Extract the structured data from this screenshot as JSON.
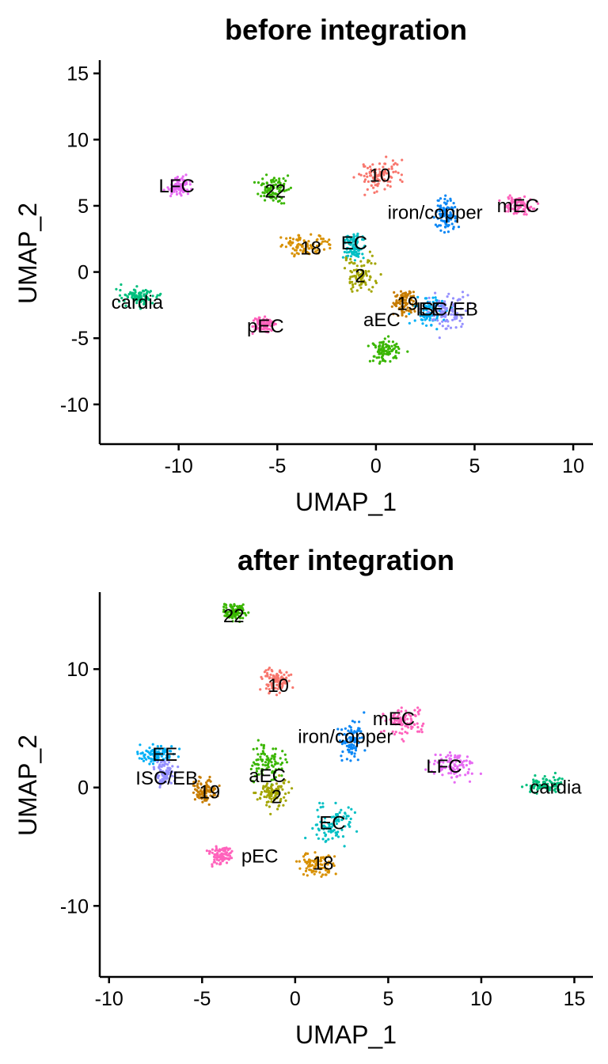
{
  "palette": {
    "red": "#F8766D",
    "olive": "#A3A500",
    "orange": "#D89000",
    "green": "#39B600",
    "teal": "#00BF7D",
    "cyan": "#00BFC4",
    "sky": "#00B0F6",
    "blue": "#0B87F5",
    "purple": "#9590FF",
    "violet": "#E76BF3",
    "pink": "#FF62BC",
    "brown": "#C77C00"
  },
  "chart_data": [
    {
      "type": "scatter",
      "title": "before integration",
      "xlabel": "UMAP_1",
      "ylabel": "UMAP_2",
      "xlim": [
        -14,
        11
      ],
      "ylim": [
        -13,
        16
      ],
      "xticks": [
        -10,
        -5,
        0,
        5,
        10
      ],
      "xtick_labels": [
        "-10",
        "-5",
        "0",
        "5",
        "10"
      ],
      "yticks": [
        15,
        10,
        5,
        0,
        -5,
        -10
      ],
      "ytick_labels": [
        "15",
        "10",
        "5",
        "0",
        "-5",
        "-10"
      ],
      "grid": false,
      "legend": "none",
      "clusters": [
        {
          "label": "LFC",
          "x": -10,
          "y": 6.5,
          "label_x": -10.1,
          "label_y": 6.5,
          "color": "#E76BF3"
        },
        {
          "label": "22",
          "x": -5.1,
          "y": 6.3,
          "label_x": -5.1,
          "label_y": 6.1,
          "color": "#39B600"
        },
        {
          "label": "10",
          "x": 0.2,
          "y": 7.3,
          "label_x": 0.2,
          "label_y": 7.3,
          "color": "#F8766D"
        },
        {
          "label": "iron/copper",
          "x": 3.5,
          "y": 4.5,
          "label_x": 3.0,
          "label_y": 4.5,
          "color": "#0B87F5"
        },
        {
          "label": "mEC",
          "x": 7.2,
          "y": 5.0,
          "label_x": 7.2,
          "label_y": 5.0,
          "color": "#FF62BC"
        },
        {
          "label": "18",
          "x": -3.5,
          "y": 2.0,
          "label_x": -3.3,
          "label_y": 1.8,
          "color": "#D89000"
        },
        {
          "label": "EC",
          "x": -1.1,
          "y": 2.0,
          "label_x": -1.1,
          "label_y": 2.2,
          "color": "#00BFC4"
        },
        {
          "label": "2",
          "x": -0.8,
          "y": -0.3,
          "label_x": -0.8,
          "label_y": -0.3,
          "color": "#A3A500"
        },
        {
          "label": "cardia",
          "x": -12,
          "y": -1.8,
          "label_x": -12.1,
          "label_y": -2.3,
          "color": "#00BF7D"
        },
        {
          "label": "19",
          "x": 1.5,
          "y": -2.4,
          "label_x": 1.6,
          "label_y": -2.4,
          "color": "#C77C00"
        },
        {
          "label": "EE",
          "x": 2.7,
          "y": -2.9,
          "label_x": 2.8,
          "label_y": -2.8,
          "color": "#00B0F6"
        },
        {
          "label": "ISC/EB",
          "x": 3.6,
          "y": -3.0,
          "label_x": 3.6,
          "label_y": -2.8,
          "color": "#9590FF"
        },
        {
          "label": "pEC",
          "x": -5.7,
          "y": -4.0,
          "label_x": -5.6,
          "label_y": -4.1,
          "color": "#FF62BC"
        },
        {
          "label": "aEC",
          "x": 0.5,
          "y": -6.0,
          "label_x": 0.3,
          "label_y": -3.6,
          "color": "#39B600"
        }
      ]
    },
    {
      "type": "scatter",
      "title": "after integration",
      "xlabel": "UMAP_1",
      "ylabel": "UMAP_2",
      "xlim": [
        -10.5,
        16
      ],
      "ylim": [
        -16,
        16.5
      ],
      "xticks": [
        -10,
        -5,
        0,
        5,
        10,
        15
      ],
      "xtick_labels": [
        "-10",
        "-5",
        "0",
        "5",
        "10",
        "15"
      ],
      "yticks": [
        10,
        0,
        -10
      ],
      "ytick_labels": [
        "10",
        "0",
        "-10"
      ],
      "grid": false,
      "legend": "none",
      "clusters": [
        {
          "label": "22",
          "x": -3.3,
          "y": 14.8,
          "label_x": -3.3,
          "label_y": 14.5,
          "color": "#39B600"
        },
        {
          "label": "10",
          "x": -1.0,
          "y": 9.0,
          "label_x": -0.9,
          "label_y": 8.6,
          "color": "#F8766D"
        },
        {
          "label": "mEC",
          "x": 5.8,
          "y": 5.5,
          "label_x": 5.3,
          "label_y": 5.8,
          "color": "#FF62BC"
        },
        {
          "label": "iron/copper",
          "x": 3.0,
          "y": 4.0,
          "label_x": 2.7,
          "label_y": 4.3,
          "color": "#0B87F5"
        },
        {
          "label": "EE",
          "x": -7.5,
          "y": 2.8,
          "label_x": -7.0,
          "label_y": 2.8,
          "color": "#00B0F6"
        },
        {
          "label": "LFC",
          "x": 8.5,
          "y": 1.8,
          "label_x": 8.0,
          "label_y": 1.8,
          "color": "#E76BF3"
        },
        {
          "label": "ISC/EB",
          "x": -7.0,
          "y": 1.2,
          "label_x": -6.9,
          "label_y": 0.8,
          "color": "#9590FF"
        },
        {
          "label": "aEC",
          "x": -1.5,
          "y": 2.0,
          "label_x": -1.5,
          "label_y": 1.0,
          "color": "#39B600"
        },
        {
          "label": "cardia",
          "x": 13.5,
          "y": 0.2,
          "label_x": 14.0,
          "label_y": 0.0,
          "color": "#00BF7D"
        },
        {
          "label": "19",
          "x": -4.8,
          "y": -0.3,
          "label_x": -4.6,
          "label_y": -0.4,
          "color": "#C77C00"
        },
        {
          "label": "2",
          "x": -1.2,
          "y": -0.5,
          "label_x": -1.0,
          "label_y": -0.8,
          "color": "#A3A500"
        },
        {
          "label": "EC",
          "x": 2.0,
          "y": -3.0,
          "label_x": 2.0,
          "label_y": -3.0,
          "color": "#00BFC4"
        },
        {
          "label": "pEC",
          "x": -4.0,
          "y": -5.8,
          "label_x": -1.9,
          "label_y": -5.8,
          "color": "#FF62BC"
        },
        {
          "label": "18",
          "x": 1.2,
          "y": -6.5,
          "label_x": 1.5,
          "label_y": -6.4,
          "color": "#D89000"
        }
      ]
    }
  ]
}
